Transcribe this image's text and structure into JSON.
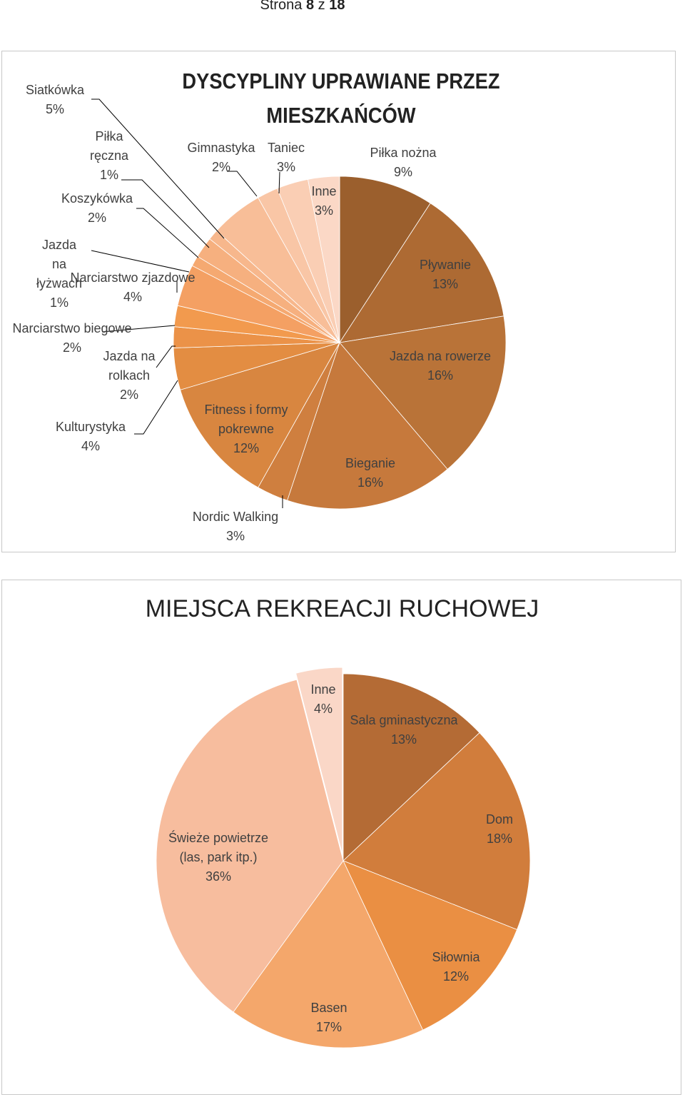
{
  "header": {
    "prefix": "Strona ",
    "page": "8",
    "middle": " z ",
    "total": "18"
  },
  "chart_data": [
    {
      "type": "pie",
      "title": "DYSCYPLINY UPRAWIANE PRZEZ MIESZKAŃCÓW",
      "start": "top",
      "direction": "clockwise",
      "slices": [
        {
          "name": "Piłka nożna",
          "label": "Piłka nożna",
          "value": 9,
          "pct": "9%",
          "color": "#9B5F2D"
        },
        {
          "name": "Pływanie",
          "label": "Pływanie",
          "value": 13,
          "pct": "13%",
          "color": "#AD6A33"
        },
        {
          "name": "Jazda na rowerze",
          "label": "Jazda na rowerze",
          "value": 16,
          "pct": "16%",
          "color": "#B97338"
        },
        {
          "name": "Bieganie",
          "label": "Bieganie",
          "value": 16,
          "pct": "16%",
          "color": "#C6793C"
        },
        {
          "name": "Nordic Walking",
          "label": "Nordic Walking",
          "value": 3,
          "pct": "3%",
          "color": "#CF7F3F"
        },
        {
          "name": "Fitness i formy pokrewne",
          "label": "Fitness i formy pokrewne",
          "value": 12,
          "pct": "12%",
          "color": "#D88640"
        },
        {
          "name": "Kulturystyka",
          "label": "Kulturystyka",
          "value": 4,
          "pct": "4%",
          "color": "#E38D42"
        },
        {
          "name": "Jazda na rolkach",
          "label": "Jazda na rolkach",
          "value": 2,
          "pct": "2%",
          "color": "#EB9248"
        },
        {
          "name": "Narciarstwo biegowe",
          "label": "Narciarstwo biegowe",
          "value": 2,
          "pct": "2%",
          "color": "#F29A4E"
        },
        {
          "name": "Narciarstwo zjazdowe",
          "label": "Narciarstwo zjazdowe",
          "value": 4,
          "pct": "4%",
          "color": "#F4A063"
        },
        {
          "name": "Jazda na łyżwach",
          "label": "Jazda na łyżwach",
          "value": 1,
          "pct": "1%",
          "color": "#F5A971"
        },
        {
          "name": "Koszykówka",
          "label": "Koszykówka",
          "value": 2,
          "pct": "2%",
          "color": "#F6B07F"
        },
        {
          "name": "Piłka ręczna",
          "label": "Piłka ręczna",
          "value": 1,
          "pct": "1%",
          "color": "#F7B78C"
        },
        {
          "name": "Siatkówka",
          "label": "Siatkówka",
          "value": 5,
          "pct": "5%",
          "color": "#F8BE98"
        },
        {
          "name": "Gimnastyka",
          "label": "Gimnastyka",
          "value": 2,
          "pct": "2%",
          "color": "#F9C6A6"
        },
        {
          "name": "Taniec",
          "label": "Taniec",
          "value": 3,
          "pct": "3%",
          "color": "#FACEB4"
        },
        {
          "name": "Inne",
          "label": "Inne",
          "value": 3,
          "pct": "3%",
          "color": "#FBD8C6"
        }
      ]
    },
    {
      "type": "pie",
      "title": "MIEJSCA REKREACJI RUCHOWEJ",
      "start": "top",
      "direction": "clockwise",
      "slices": [
        {
          "name": "Sala gminastyczna",
          "label": "Sala gminastyczna",
          "value": 13,
          "pct": "13%",
          "color": "#B46B35"
        },
        {
          "name": "Dom",
          "label": "Dom",
          "value": 18,
          "pct": "18%",
          "color": "#D17D3C"
        },
        {
          "name": "Siłownia",
          "label": "Siłownia",
          "value": 12,
          "pct": "12%",
          "color": "#EA8F43"
        },
        {
          "name": "Basen",
          "label": "Basen",
          "value": 17,
          "pct": "17%",
          "color": "#F4A76B"
        },
        {
          "name": "Świeże powietrze (las, park itp.)",
          "label": "Świeże powietrze (las, park itp.)",
          "value": 36,
          "pct": "36%",
          "color": "#F7BD9E"
        },
        {
          "name": "Inne",
          "label": "Inne",
          "value": 4,
          "pct": "4%",
          "color": "#FAD7C7"
        }
      ]
    }
  ]
}
